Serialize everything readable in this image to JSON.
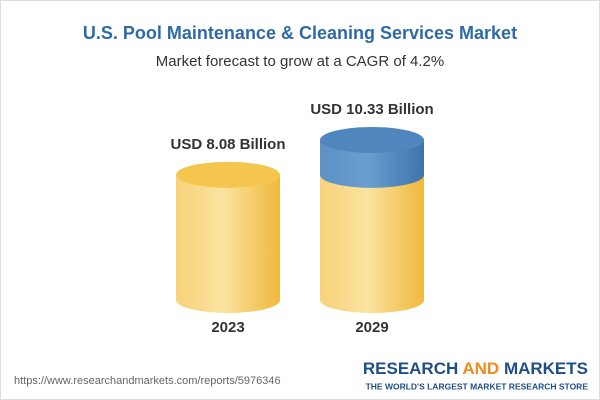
{
  "chart_data": {
    "type": "cylinder",
    "title": "U.S. Pool Maintenance & Cleaning Services Market",
    "subtitle": "Market forecast to grow at a CAGR of 4.2%",
    "categories": [
      "2023",
      "2029"
    ],
    "values": [
      8.08,
      10.33
    ],
    "value_labels": [
      "USD 8.08 Billion",
      "USD 10.33 Billion"
    ],
    "color": "#f5c64e",
    "growth_color": "#4f86bd"
  },
  "source": "https://www.researchandmarkets.com/reports/5976346",
  "brand": {
    "name": [
      "RESEARCH",
      "AND",
      "MARKETS"
    ],
    "tagline": "THE WORLD'S LARGEST MARKET RESEARCH STORE"
  }
}
